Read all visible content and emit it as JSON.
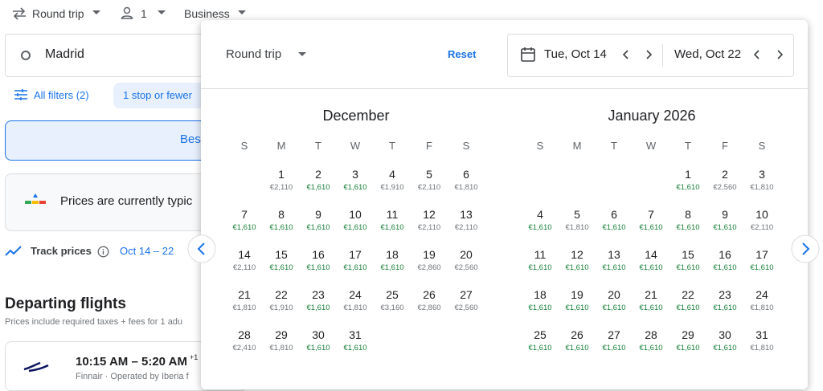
{
  "top_bar": {
    "trip_type": "Round trip",
    "passengers": "1",
    "cabin": "Business"
  },
  "search": {
    "origin": "Madrid"
  },
  "filters": {
    "all_filters": "All filters (2)",
    "stops": "1 stop or fewer"
  },
  "sort_tab": "Bes",
  "price_insight": "Prices are currently typic",
  "track": {
    "label": "Track prices",
    "dates": "Oct 14 – 22"
  },
  "departing": {
    "title": "Departing flights",
    "note": "Prices include required taxes + fees for 1 adu"
  },
  "flight": {
    "times": "10:15 AM – 5:20 AM",
    "day_offset": "+1",
    "airline": "Finnair · Operated by Iberia f"
  },
  "date_picker": {
    "trip_type": "Round trip",
    "reset": "Reset",
    "depart": "Tue, Oct 14",
    "return": "Wed, Oct 22",
    "weekdays": [
      "S",
      "M",
      "T",
      "W",
      "T",
      "F",
      "S"
    ],
    "months": [
      {
        "title": "December",
        "weeks": [
          [
            null,
            {
              "day": "1",
              "price": "€2,110",
              "color": "#70757a"
            },
            {
              "day": "2",
              "price": "€1,610",
              "color": "#188038"
            },
            {
              "day": "3",
              "price": "€1,610",
              "color": "#188038"
            },
            {
              "day": "4",
              "price": "€1,910",
              "color": "#70757a"
            },
            {
              "day": "5",
              "price": "€2,110",
              "color": "#70757a"
            },
            {
              "day": "6",
              "price": "€1,810",
              "color": "#70757a"
            }
          ],
          [
            {
              "day": "7",
              "price": "€1,610",
              "color": "#188038"
            },
            {
              "day": "8",
              "price": "€1,610",
              "color": "#188038"
            },
            {
              "day": "9",
              "price": "€1,610",
              "color": "#188038"
            },
            {
              "day": "10",
              "price": "€1,610",
              "color": "#188038"
            },
            {
              "day": "11",
              "price": "€1,610",
              "color": "#188038"
            },
            {
              "day": "12",
              "price": "€2,110",
              "color": "#70757a"
            },
            {
              "day": "13",
              "price": "€2,110",
              "color": "#70757a"
            }
          ],
          [
            {
              "day": "14",
              "price": "€2,110",
              "color": "#70757a"
            },
            {
              "day": "15",
              "price": "€1,610",
              "color": "#188038"
            },
            {
              "day": "16",
              "price": "€1,610",
              "color": "#188038"
            },
            {
              "day": "17",
              "price": "€1,610",
              "color": "#188038"
            },
            {
              "day": "18",
              "price": "€1,610",
              "color": "#188038"
            },
            {
              "day": "19",
              "price": "€2,860",
              "color": "#70757a"
            },
            {
              "day": "20",
              "price": "€2,560",
              "color": "#70757a"
            }
          ],
          [
            {
              "day": "21",
              "price": "€1,810",
              "color": "#70757a"
            },
            {
              "day": "22",
              "price": "€1,910",
              "color": "#70757a"
            },
            {
              "day": "23",
              "price": "€1,610",
              "color": "#188038"
            },
            {
              "day": "24",
              "price": "€1,810",
              "color": "#70757a"
            },
            {
              "day": "25",
              "price": "€3,160",
              "color": "#70757a"
            },
            {
              "day": "26",
              "price": "€2,860",
              "color": "#70757a"
            },
            {
              "day": "27",
              "price": "€2,560",
              "color": "#70757a"
            }
          ],
          [
            {
              "day": "28",
              "price": "€2,410",
              "color": "#70757a"
            },
            {
              "day": "29",
              "price": "€1,810",
              "color": "#70757a"
            },
            {
              "day": "30",
              "price": "€1,610",
              "color": "#188038"
            },
            {
              "day": "31",
              "price": "€1,610",
              "color": "#188038"
            }
          ]
        ]
      },
      {
        "title": "January 2026",
        "weeks": [
          [
            null,
            null,
            null,
            null,
            {
              "day": "1",
              "price": "€1,610",
              "color": "#188038"
            },
            {
              "day": "2",
              "price": "€2,560",
              "color": "#70757a"
            },
            {
              "day": "3",
              "price": "€1,810",
              "color": "#70757a"
            }
          ],
          [
            {
              "day": "4",
              "price": "€1,610",
              "color": "#188038"
            },
            {
              "day": "5",
              "price": "€1,810",
              "color": "#70757a"
            },
            {
              "day": "6",
              "price": "€1,610",
              "color": "#188038"
            },
            {
              "day": "7",
              "price": "€1,610",
              "color": "#188038"
            },
            {
              "day": "8",
              "price": "€1,610",
              "color": "#188038"
            },
            {
              "day": "9",
              "price": "€1,610",
              "color": "#188038"
            },
            {
              "day": "10",
              "price": "€2,110",
              "color": "#70757a"
            }
          ],
          [
            {
              "day": "11",
              "price": "€1,610",
              "color": "#188038"
            },
            {
              "day": "12",
              "price": "€1,610",
              "color": "#188038"
            },
            {
              "day": "13",
              "price": "€1,610",
              "color": "#188038"
            },
            {
              "day": "14",
              "price": "€1,610",
              "color": "#188038"
            },
            {
              "day": "15",
              "price": "€1,610",
              "color": "#188038"
            },
            {
              "day": "16",
              "price": "€1,610",
              "color": "#188038"
            },
            {
              "day": "17",
              "price": "€1,610",
              "color": "#188038"
            }
          ],
          [
            {
              "day": "18",
              "price": "€1,610",
              "color": "#188038"
            },
            {
              "day": "19",
              "price": "€1,610",
              "color": "#188038"
            },
            {
              "day": "20",
              "price": "€1,610",
              "color": "#188038"
            },
            {
              "day": "21",
              "price": "€1,610",
              "color": "#188038"
            },
            {
              "day": "22",
              "price": "€1,610",
              "color": "#188038"
            },
            {
              "day": "23",
              "price": "€1,610",
              "color": "#188038"
            },
            {
              "day": "24",
              "price": "€1,810",
              "color": "#70757a"
            }
          ],
          [
            {
              "day": "25",
              "price": "€1,610",
              "color": "#188038"
            },
            {
              "day": "26",
              "price": "€1,610",
              "color": "#188038"
            },
            {
              "day": "27",
              "price": "€1,610",
              "color": "#188038"
            },
            {
              "day": "28",
              "price": "€1,610",
              "color": "#188038"
            },
            {
              "day": "29",
              "price": "€1,610",
              "color": "#188038"
            },
            {
              "day": "30",
              "price": "€1,610",
              "color": "#188038"
            },
            {
              "day": "31",
              "price": "€1,810",
              "color": "#70757a"
            }
          ]
        ]
      }
    ]
  }
}
